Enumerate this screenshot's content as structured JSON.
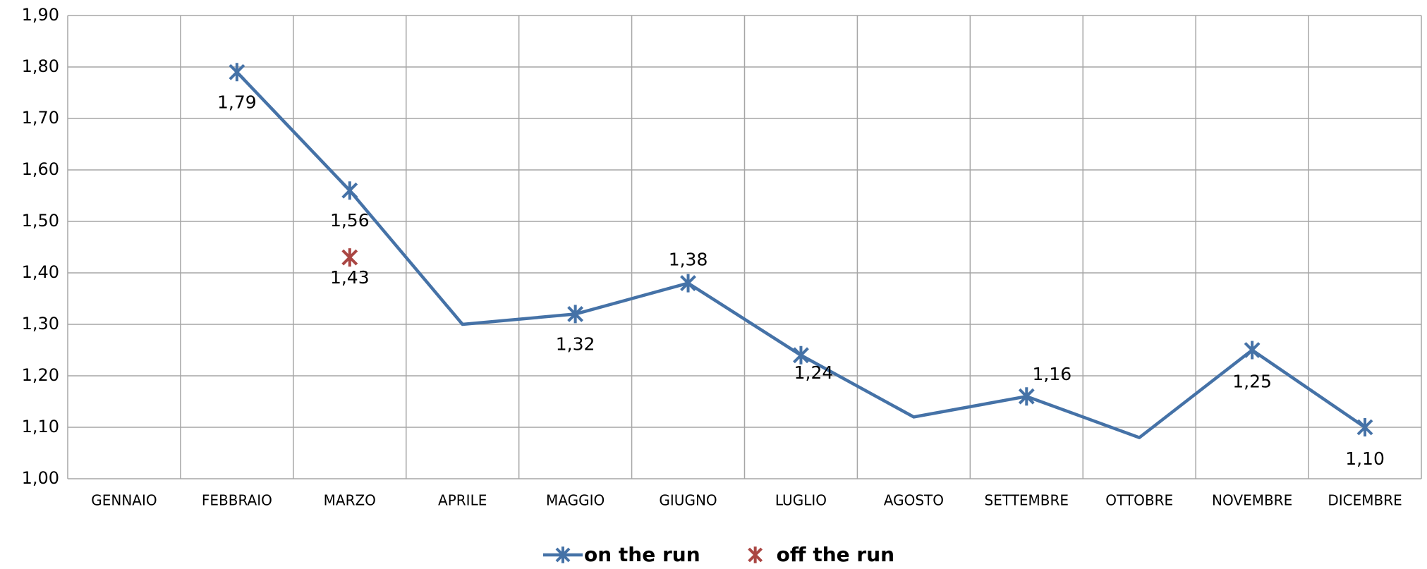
{
  "chart_data": {
    "type": "line",
    "categories": [
      "GENNAIO",
      "FEBBRAIO",
      "MARZO",
      "APRILE",
      "MAGGIO",
      "GIUGNO",
      "LUGLIO",
      "AGOSTO",
      "SETTEMBRE",
      "OTTOBRE",
      "NOVEMBRE",
      "DICEMBRE"
    ],
    "series": [
      {
        "name": "on the run",
        "color": "#4572a7",
        "values": [
          null,
          1.79,
          1.56,
          1.3,
          1.32,
          1.38,
          1.24,
          1.12,
          1.16,
          1.08,
          1.25,
          1.1
        ],
        "value_labels": [
          null,
          "1,79",
          "1,56",
          null,
          "1,32",
          "1,38",
          "1,24",
          null,
          "1,16",
          null,
          "1,25",
          "1,10"
        ]
      },
      {
        "name": "off the run",
        "color": "#aa4643",
        "values": [
          null,
          null,
          1.43,
          null,
          null,
          null,
          null,
          null,
          null,
          null,
          null,
          null
        ],
        "value_labels": [
          null,
          null,
          "1,43",
          null,
          null,
          null,
          null,
          null,
          null,
          null,
          null,
          null
        ]
      }
    ],
    "ylim": [
      1.0,
      1.9
    ],
    "yticks": [
      {
        "value": 1.0,
        "label": "1,00"
      },
      {
        "value": 1.1,
        "label": "1,10"
      },
      {
        "value": 1.2,
        "label": "1,20"
      },
      {
        "value": 1.3,
        "label": "1,30"
      },
      {
        "value": 1.4,
        "label": "1,40"
      },
      {
        "value": 1.5,
        "label": "1,50"
      },
      {
        "value": 1.6,
        "label": "1,60"
      },
      {
        "value": 1.7,
        "label": "1,70"
      },
      {
        "value": 1.8,
        "label": "1,80"
      },
      {
        "value": 1.9,
        "label": "1,90"
      }
    ],
    "grid": true,
    "legend": "bottom"
  }
}
